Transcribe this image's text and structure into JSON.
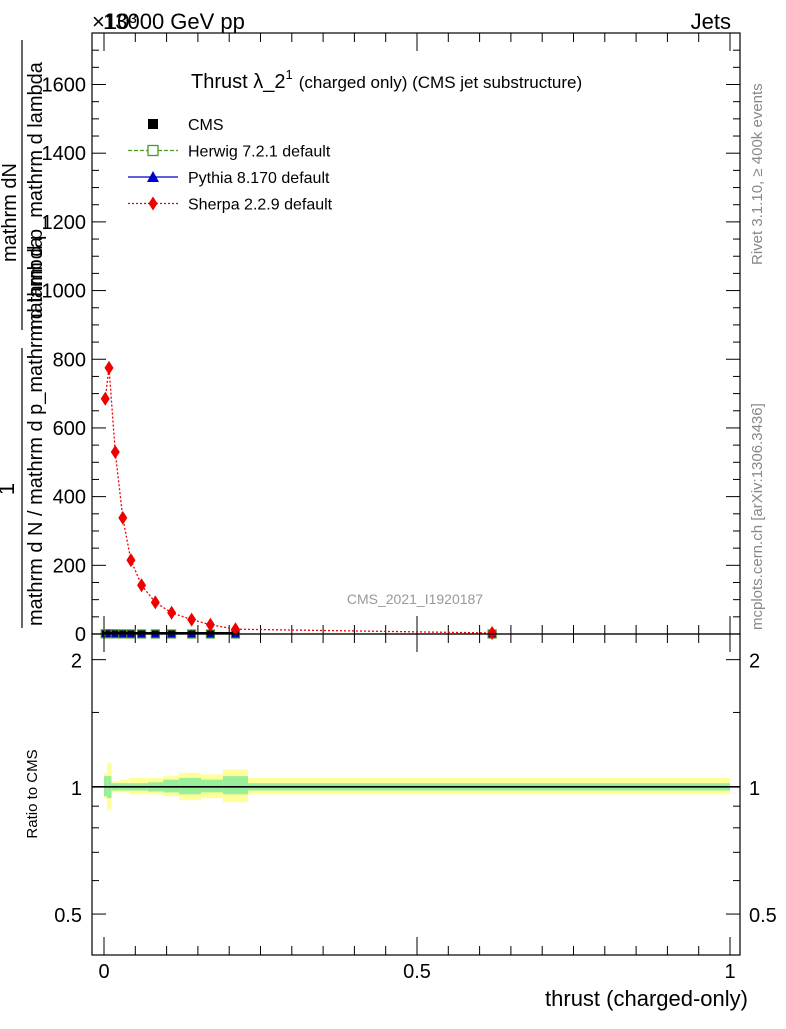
{
  "header": {
    "left": "13000 GeV pp",
    "right": "Jets",
    "exponent": "×10³"
  },
  "side_labels": {
    "rivet": "Rivet 3.1.10, ≥ 400k events",
    "mcplots": "mcplots.cern.ch [arXiv:1306.3436]"
  },
  "watermark": "CMS_2021_I1920187",
  "chart_data": [
    {
      "type": "line",
      "title_main": "Thrust λ_2",
      "title_sup": "1",
      "title_rest": "(charged only) (CMS jet substructure)",
      "ylabel_num": "mathrm dN",
      "ylabel_den": "mathrm d p_mathrm d lambda",
      "ylabel_prefix_num": "1",
      "ylabel_prefix_den": "mathrm d N / mathrm d p_mathrm d lambda",
      "xlim": [
        0,
        1
      ],
      "ylim": [
        0,
        1750
      ],
      "y_ticks": [
        0,
        200,
        400,
        600,
        800,
        1000,
        1200,
        1400,
        1600
      ],
      "y_tick_labels": [
        "0",
        "200",
        "400",
        "600",
        "800",
        "1000",
        "1200",
        "1400",
        "1600"
      ],
      "legend": [
        {
          "key": "cms",
          "label": "CMS",
          "color": "#000000",
          "marker": "square-filled"
        },
        {
          "key": "herwig",
          "label": "Herwig 7.2.1 default",
          "color": "#4c9a2a",
          "marker": "square-open"
        },
        {
          "key": "pythia",
          "label": "Pythia 8.170 default",
          "color": "#0000cc",
          "marker": "triangle"
        },
        {
          "key": "sherpa",
          "label": "Sherpa 2.2.9 default",
          "color": "#ee0000",
          "marker": "diamond"
        }
      ],
      "series": [
        {
          "name": "Sherpa 2.2.9 default",
          "x": [
            0.002,
            0.008,
            0.018,
            0.03,
            0.043,
            0.06,
            0.082,
            0.108,
            0.14,
            0.17,
            0.21,
            0.62
          ],
          "y": [
            685,
            775,
            530,
            338,
            215,
            142,
            92,
            62,
            42,
            27,
            14,
            3
          ]
        },
        {
          "name": "CMS",
          "x": [
            0.002,
            0.008,
            0.018,
            0.03,
            0.043,
            0.06,
            0.082,
            0.108,
            0.14,
            0.17,
            0.21,
            0.62
          ],
          "y": [
            0.7,
            0.8,
            0.5,
            0.35,
            0.22,
            0.14,
            0.09,
            0.06,
            0.04,
            0.03,
            0.01,
            0.003
          ]
        }
      ]
    },
    {
      "type": "area",
      "ylabel": "Ratio to CMS",
      "xlabel": "thrust (charged-only)",
      "xlim": [
        0,
        1
      ],
      "ylim": [
        0.4,
        2.3
      ],
      "y_scale": "log",
      "x_ticks": [
        0,
        0.5,
        1
      ],
      "x_tick_labels": [
        "0",
        "0.5",
        "1"
      ],
      "y_ticks": [
        0.5,
        1,
        2
      ],
      "y_tick_labels": [
        "0.5",
        "1",
        "2"
      ],
      "reference_line": 1,
      "band_colors": {
        "outer": "#ffff99",
        "inner": "#99ee99",
        "line": "#000000"
      },
      "bands": [
        {
          "x0": 0.0,
          "x1": 0.005,
          "inner": [
            0.95,
            1.06
          ],
          "outer": [
            0.94,
            1.08
          ]
        },
        {
          "x0": 0.005,
          "x1": 0.012,
          "inner": [
            0.94,
            1.06
          ],
          "outer": [
            0.88,
            1.14
          ]
        },
        {
          "x0": 0.012,
          "x1": 0.025,
          "inner": [
            0.98,
            1.02
          ],
          "outer": [
            0.97,
            1.03
          ]
        },
        {
          "x0": 0.025,
          "x1": 0.04,
          "inner": [
            0.98,
            1.02
          ],
          "outer": [
            0.97,
            1.04
          ]
        },
        {
          "x0": 0.04,
          "x1": 0.07,
          "inner": [
            0.98,
            1.02
          ],
          "outer": [
            0.96,
            1.05
          ]
        },
        {
          "x0": 0.07,
          "x1": 0.095,
          "inner": [
            0.975,
            1.025
          ],
          "outer": [
            0.96,
            1.05
          ]
        },
        {
          "x0": 0.095,
          "x1": 0.12,
          "inner": [
            0.97,
            1.04
          ],
          "outer": [
            0.95,
            1.06
          ]
        },
        {
          "x0": 0.12,
          "x1": 0.155,
          "inner": [
            0.96,
            1.05
          ],
          "outer": [
            0.93,
            1.08
          ]
        },
        {
          "x0": 0.155,
          "x1": 0.19,
          "inner": [
            0.97,
            1.04
          ],
          "outer": [
            0.94,
            1.07
          ]
        },
        {
          "x0": 0.19,
          "x1": 0.23,
          "inner": [
            0.96,
            1.06
          ],
          "outer": [
            0.92,
            1.1
          ]
        },
        {
          "x0": 0.23,
          "x1": 1.0,
          "inner": [
            0.98,
            1.02
          ],
          "outer": [
            0.96,
            1.05
          ]
        }
      ]
    }
  ]
}
